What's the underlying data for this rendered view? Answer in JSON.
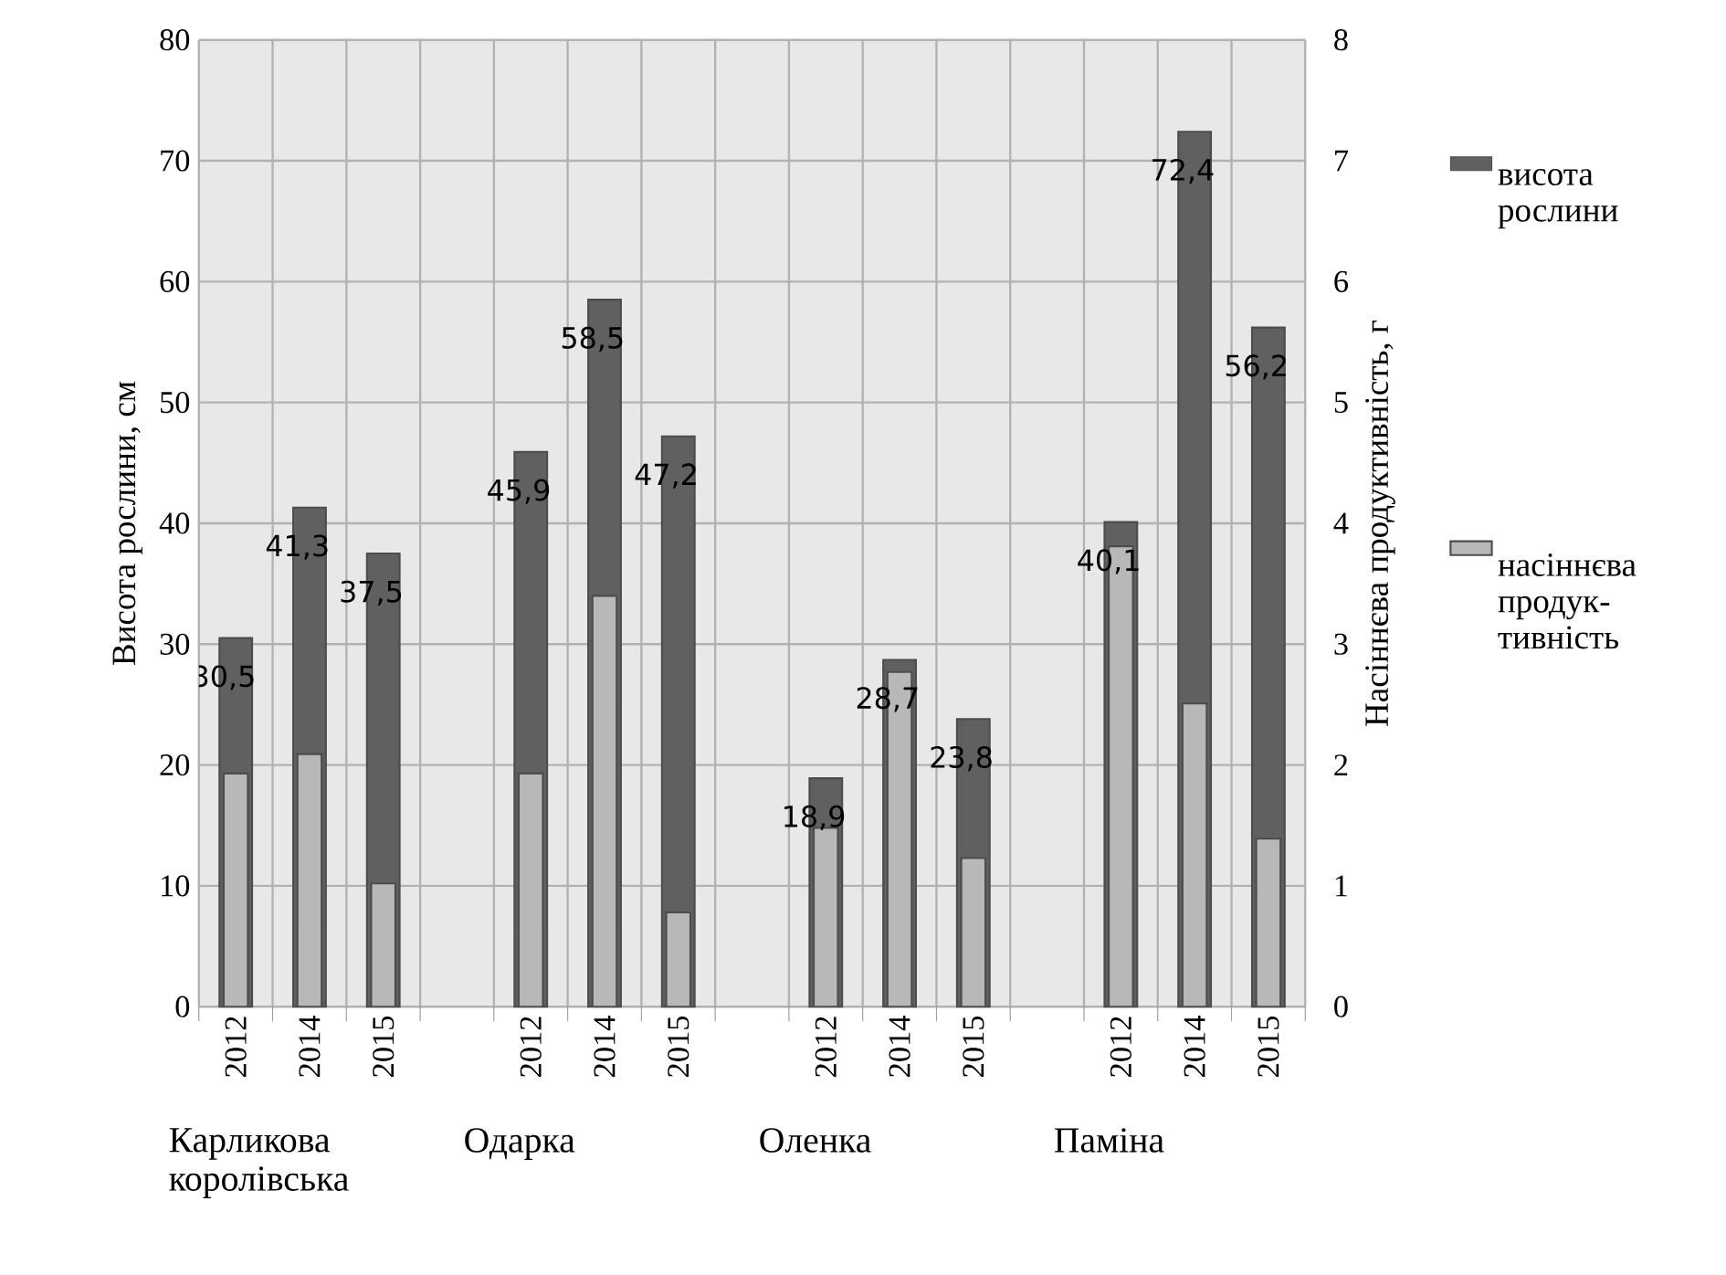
{
  "chart_data": {
    "type": "bar",
    "xlabel": null,
    "ylabel": "Висота рослини, см",
    "y2label": "Насіннєва продуктивність, г",
    "categories": [
      "2012",
      "2014",
      "2015",
      null,
      "2012",
      "2014",
      "2015",
      null,
      "2012",
      "2014",
      "2015",
      null,
      "2012",
      "2014",
      "2015"
    ],
    "series": [
      {
        "name": "висота рослини",
        "color": "#606060",
        "values": [
          30.5,
          41.3,
          37.5,
          null,
          45.9,
          58.5,
          47.2,
          null,
          18.9,
          28.7,
          23.8,
          null,
          40.1,
          72.4,
          56.2
        ],
        "value_labels": [
          "30,5",
          "41,3",
          "37,5",
          null,
          "45,9",
          "58,5",
          "47,2",
          null,
          "18,9",
          "28,7",
          "23,8",
          null,
          "40,1",
          "72,4",
          "56,2"
        ]
      },
      {
        "name": "насіннєва продук-тивність",
        "color": "#b8b8b8",
        "axis": "y2",
        "values": [
          1.93,
          2.09,
          1.02,
          null,
          1.93,
          3.4,
          0.78,
          null,
          1.48,
          2.77,
          1.23,
          null,
          3.81,
          2.51,
          1.39
        ]
      }
    ],
    "ylim": [
      0,
      80
    ],
    "yticks": [
      0,
      10,
      20,
      30,
      40,
      50,
      60,
      70,
      80
    ],
    "y2lim": [
      0,
      8
    ],
    "y2ticks": [
      0,
      1,
      2,
      3,
      4,
      5,
      6,
      7,
      8
    ],
    "grid": true,
    "legend": "right",
    "annotations": [
      "Карликова королівська",
      "Одарка",
      "Оленка",
      "Паміна"
    ]
  }
}
